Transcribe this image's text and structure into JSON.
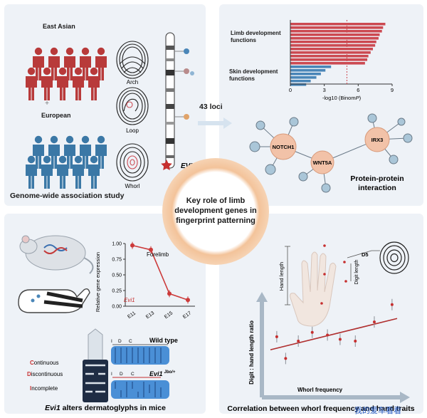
{
  "center": {
    "title": "Key role of limb development genes in fingerprint patterning"
  },
  "loci_label": "43 loci",
  "gwas": {
    "east_asian_label": "East Asian",
    "european_label": "European",
    "fingerprints": [
      "Arch",
      "Loop",
      "Whorl"
    ],
    "gene_label": "EVI1",
    "caption": "Genome-wide association study",
    "colors": {
      "east_asian": "#b83a3a",
      "european": "#3b78a6"
    }
  },
  "enrichment": {
    "limb_label": "Limb development functions",
    "skin_label": "Skin development functions",
    "xlabel_prefix": "-log10 (Binom",
    "xlabel_italic": "P",
    "xlabel_suffix": ")",
    "xticks": [
      "0",
      "3",
      "6",
      "9"
    ],
    "limb_values": [
      8.4,
      8.2,
      8.1,
      7.9,
      7.8,
      7.6,
      7.5,
      7.3,
      7.1,
      6.9,
      6.8,
      6.6
    ],
    "skin_values": [
      3.6,
      3.1,
      2.7,
      2.3,
      1.8,
      1.4
    ],
    "threshold": 5,
    "colors": {
      "limb": "#cc4a52",
      "skin": "#4a86b8"
    }
  },
  "ppi": {
    "nodes": [
      "NOTCH1",
      "WNT5A",
      "IRX3"
    ],
    "caption_line1": "Protein-protein",
    "caption_line2": "interaction"
  },
  "expression": {
    "ylabel": "Relative gene expression",
    "series_label": "Forelimb",
    "gene_label": "Evi1",
    "yticks": [
      "1.00",
      "0.75",
      "0.50",
      "0.25",
      "0.00"
    ],
    "ylim": [
      0,
      1
    ],
    "categories": [
      "E11",
      "E13",
      "E15",
      "E17"
    ],
    "values": [
      0.97,
      0.9,
      0.2,
      0.1
    ],
    "color": "#cc3a3a"
  },
  "mice": {
    "wt_label": "Wild type",
    "mut_gene": "Evi1",
    "mut_superscript": "Jbo/+",
    "ridge_types": [
      {
        "initial": "C",
        "rest": "ontinuous"
      },
      {
        "initial": "D",
        "rest": "iscontinuous"
      },
      {
        "initial": "I",
        "rest": "ncomplete"
      }
    ],
    "segment_labels": [
      "I",
      "D",
      "C"
    ],
    "caption_gene": "Evi1",
    "caption_rest": " alters dermatoglyphs in mice"
  },
  "correlation": {
    "hand_length_label": "Hand length",
    "digit_label": "D5",
    "digit_length_label": "Digit length",
    "ylabel": "Digit : hand length ratio",
    "xlabel": "Whorl frequency",
    "caption": "Correlation between whorl frequency and hand traits",
    "points": [
      {
        "x": 0.05,
        "y": 0.55
      },
      {
        "x": 0.12,
        "y": 0.3
      },
      {
        "x": 0.22,
        "y": 0.5
      },
      {
        "x": 0.33,
        "y": 0.6
      },
      {
        "x": 0.45,
        "y": 0.57
      },
      {
        "x": 0.55,
        "y": 0.52
      },
      {
        "x": 0.67,
        "y": 0.5
      },
      {
        "x": 0.82,
        "y": 0.72
      },
      {
        "x": 0.96,
        "y": 0.92
      }
    ],
    "trend": {
      "start": 0.4,
      "end": 0.76
    }
  },
  "watermark": "我的爱车看看"
}
